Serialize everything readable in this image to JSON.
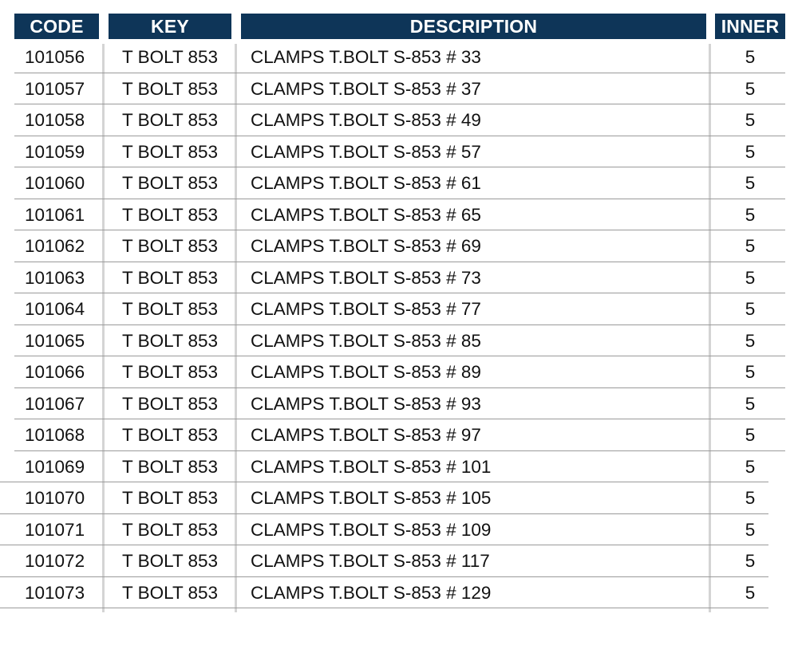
{
  "table": {
    "headers": {
      "code": "CODE",
      "key": "KEY",
      "description": "DESCRIPTION",
      "inner": "INNER"
    },
    "header_color": "#0e3558",
    "rows": [
      {
        "code": "101056",
        "key": "T BOLT 853",
        "description": "CLAMPS T.BOLT S-853 # 33",
        "inner": "5"
      },
      {
        "code": "101057",
        "key": "T BOLT 853",
        "description": "CLAMPS T.BOLT S-853 # 37",
        "inner": "5"
      },
      {
        "code": "101058",
        "key": "T BOLT 853",
        "description": "CLAMPS T.BOLT S-853 # 49",
        "inner": "5"
      },
      {
        "code": "101059",
        "key": "T BOLT 853",
        "description": "CLAMPS T.BOLT S-853 # 57",
        "inner": "5"
      },
      {
        "code": "101060",
        "key": "T BOLT 853",
        "description": "CLAMPS T.BOLT S-853 # 61",
        "inner": "5"
      },
      {
        "code": "101061",
        "key": "T BOLT 853",
        "description": "CLAMPS T.BOLT S-853 # 65",
        "inner": "5"
      },
      {
        "code": "101062",
        "key": "T BOLT 853",
        "description": "CLAMPS T.BOLT S-853 # 69",
        "inner": "5"
      },
      {
        "code": "101063",
        "key": "T BOLT 853",
        "description": "CLAMPS T.BOLT S-853 # 73",
        "inner": "5"
      },
      {
        "code": "101064",
        "key": "T BOLT 853",
        "description": "CLAMPS T.BOLT S-853 # 77",
        "inner": "5"
      },
      {
        "code": "101065",
        "key": "T BOLT 853",
        "description": "CLAMPS T.BOLT S-853 # 85",
        "inner": "5"
      },
      {
        "code": "101066",
        "key": "T BOLT 853",
        "description": "CLAMPS T.BOLT S-853 # 89",
        "inner": "5"
      },
      {
        "code": "101067",
        "key": "T BOLT 853",
        "description": "CLAMPS T.BOLT S-853 # 93",
        "inner": "5"
      },
      {
        "code": "101068",
        "key": "T BOLT 853",
        "description": "CLAMPS T.BOLT S-853 # 97",
        "inner": "5"
      },
      {
        "code": "101069",
        "key": "T BOLT 853",
        "description": "CLAMPS T.BOLT S-853 # 101",
        "inner": "5"
      },
      {
        "code": "101070",
        "key": "T BOLT 853",
        "description": "CLAMPS T.BOLT S-853 # 105",
        "inner": "5"
      },
      {
        "code": "101071",
        "key": "T BOLT 853",
        "description": "CLAMPS T.BOLT S-853 # 109",
        "inner": "5"
      },
      {
        "code": "101072",
        "key": "T BOLT 853",
        "description": "CLAMPS T.BOLT S-853 # 117",
        "inner": "5"
      },
      {
        "code": "101073",
        "key": "T BOLT 853",
        "description": "CLAMPS T.BOLT S-853 # 129",
        "inner": "5"
      }
    ]
  }
}
